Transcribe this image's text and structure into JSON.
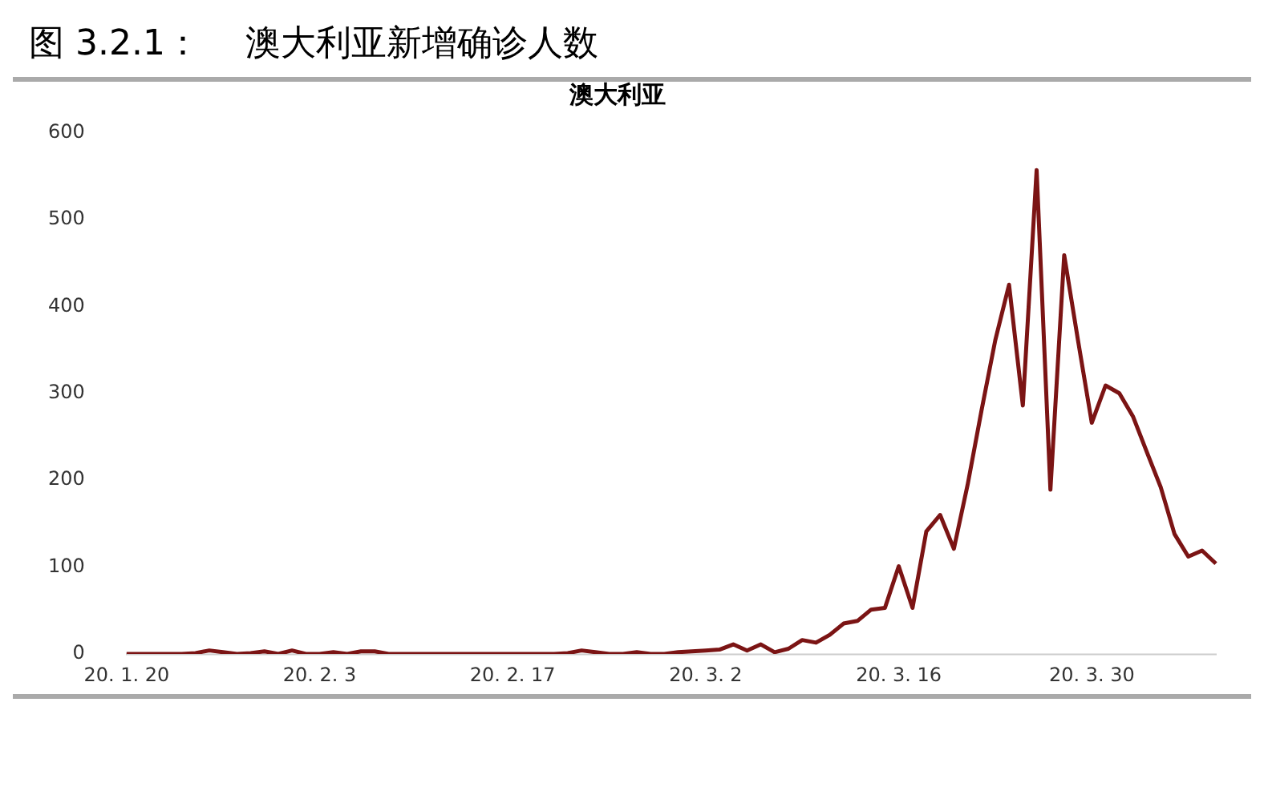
{
  "chart_data": {
    "type": "line",
    "title": "图 3.2.1：    澳大利亚新增确诊人数",
    "subtitle": "澳大利亚",
    "categories": [
      "20. 1. 20",
      null,
      null,
      null,
      null,
      null,
      null,
      null,
      null,
      null,
      null,
      null,
      null,
      null,
      "20. 2. 3",
      null,
      null,
      null,
      null,
      null,
      null,
      null,
      null,
      null,
      null,
      null,
      null,
      null,
      "20. 2. 17",
      null,
      null,
      null,
      null,
      null,
      null,
      null,
      null,
      null,
      null,
      null,
      null,
      null,
      "20. 3. 2",
      null,
      null,
      null,
      null,
      null,
      null,
      null,
      null,
      null,
      null,
      null,
      null,
      null,
      "20. 3. 16",
      null,
      null,
      null,
      null,
      null,
      null,
      null,
      null,
      null,
      null,
      null,
      null,
      null,
      "20. 3. 30",
      null,
      null,
      null,
      null,
      null,
      null,
      null,
      null,
      null
    ],
    "series": [
      {
        "color": "#7b1414",
        "values": [
          0,
          0,
          0,
          0,
          0,
          1,
          4,
          2,
          0,
          1,
          3,
          0,
          4,
          0,
          0,
          2,
          0,
          3,
          3,
          0,
          0,
          0,
          0,
          0,
          0,
          0,
          0,
          0,
          0,
          0,
          0,
          0,
          1,
          4,
          2,
          0,
          0,
          2,
          0,
          0,
          2,
          3,
          4,
          5,
          11,
          4,
          11,
          2,
          6,
          16,
          13,
          22,
          35,
          38,
          51,
          53,
          101,
          53,
          141,
          160,
          121,
          195,
          280,
          361,
          425,
          286,
          557,
          189,
          459,
          361,
          266,
          309,
          300,
          273,
          232,
          192,
          138,
          112,
          119,
          104
        ]
      }
    ],
    "ylim": [
      0,
      600
    ],
    "yticks": [
      0,
      100,
      200,
      300,
      400,
      500,
      600
    ],
    "grid": false,
    "legend": false,
    "marker": "none",
    "line_style": "solid"
  }
}
